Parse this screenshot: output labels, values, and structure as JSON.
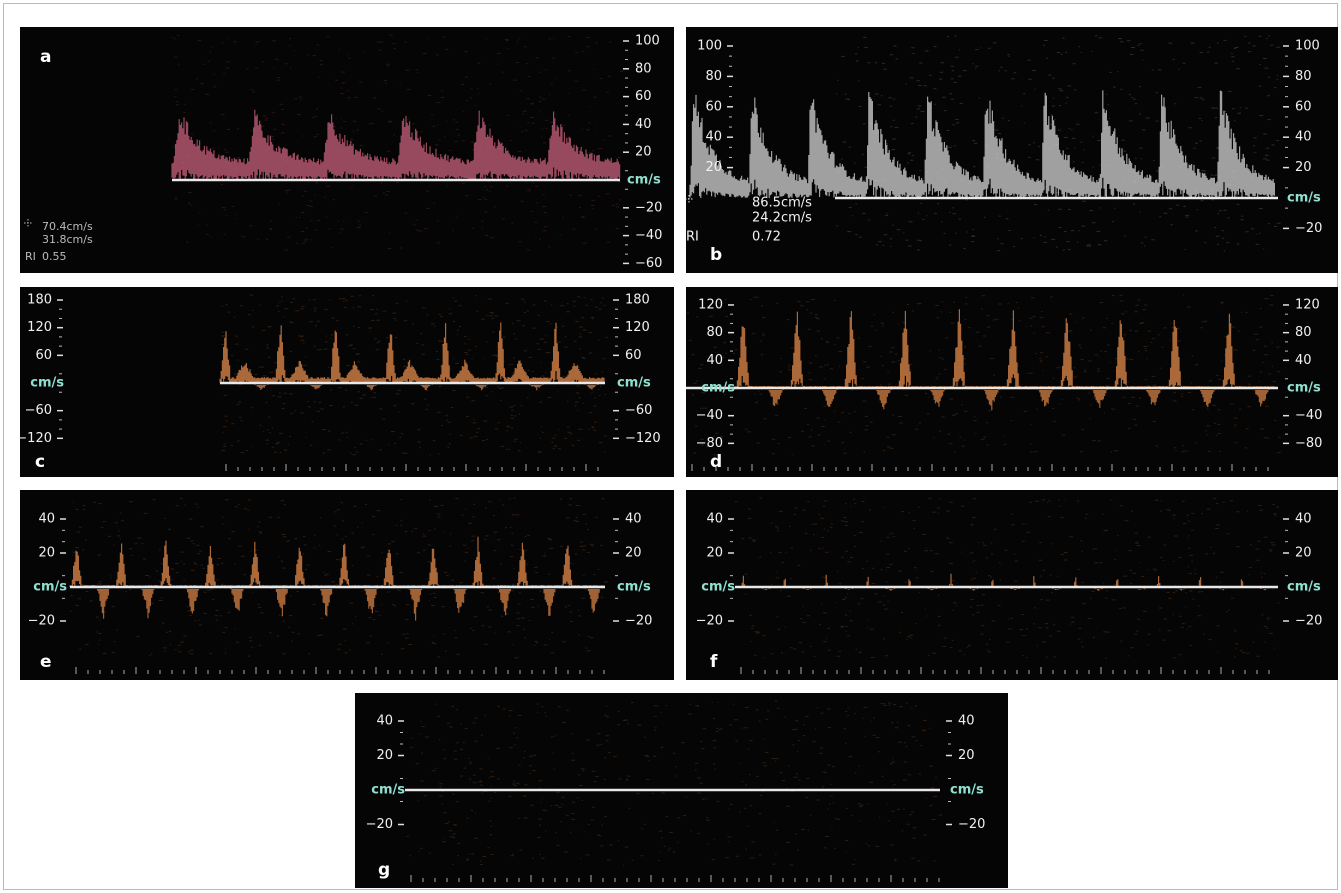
{
  "panels": [
    {
      "label": "a",
      "right": {
        "ticks": [
          100,
          80,
          60,
          40,
          20,
          {
            "value": -20,
            "label": "−20"
          },
          {
            "value": -40,
            "label": "−40"
          },
          {
            "value": -60,
            "label": "−60"
          }
        ],
        "unit": "cm/s"
      },
      "measurements": [
        {
          "value": "70.4cm/s"
        },
        {
          "value": "31.8cm/s"
        },
        {
          "label": "RI",
          "value": "0.55"
        }
      ]
    },
    {
      "label": "b",
      "left": {
        "ticks": [
          100,
          80,
          60,
          40,
          20
        ]
      },
      "right": {
        "ticks": [
          100,
          80,
          60,
          40,
          20,
          {
            "value": -20,
            "label": "−20"
          }
        ],
        "unit": "cm/s"
      },
      "measurements": [
        {
          "value": "86.5cm/s"
        },
        {
          "value": "24.2cm/s"
        },
        {
          "label": "RI",
          "value": "0.72"
        }
      ]
    },
    {
      "label": "c",
      "left": {
        "ticks": [
          180,
          120,
          60,
          {
            "value": -60,
            "label": "−60"
          },
          {
            "value": -120,
            "label": "−120"
          }
        ],
        "unit": "cm/s"
      },
      "right": {
        "ticks": [
          180,
          120,
          60,
          {
            "value": -60,
            "label": "−60"
          },
          {
            "value": -120,
            "label": "−120"
          }
        ],
        "unit": "cm/s"
      }
    },
    {
      "label": "d",
      "left": {
        "ticks": [
          120,
          80,
          40,
          {
            "value": -40,
            "label": "−40"
          },
          {
            "value": -80,
            "label": "−80"
          }
        ],
        "unit": "cm/s"
      },
      "right": {
        "ticks": [
          120,
          80,
          40,
          {
            "value": -40,
            "label": "−40"
          },
          {
            "value": -80,
            "label": "−80"
          }
        ],
        "unit": "cm/s"
      }
    },
    {
      "label": "e",
      "left": {
        "ticks": [
          40,
          20,
          {
            "value": -20,
            "label": "−20"
          }
        ],
        "unit": "cm/s"
      },
      "right": {
        "ticks": [
          40,
          20,
          {
            "value": -20,
            "label": "−20"
          }
        ],
        "unit": "cm/s"
      }
    },
    {
      "label": "f",
      "left": {
        "ticks": [
          40,
          20,
          {
            "value": -20,
            "label": "−20"
          }
        ],
        "unit": "cm/s"
      },
      "right": {
        "ticks": [
          40,
          20,
          {
            "value": -20,
            "label": "−20"
          }
        ],
        "unit": "cm/s"
      }
    },
    {
      "label": "g",
      "left": {
        "ticks": [
          40,
          20,
          {
            "value": -20,
            "label": "−20"
          }
        ],
        "unit": "cm/s"
      },
      "right": {
        "ticks": [
          40,
          20,
          {
            "value": -20,
            "label": "−20"
          }
        ],
        "unit": "cm/s"
      }
    }
  ]
}
